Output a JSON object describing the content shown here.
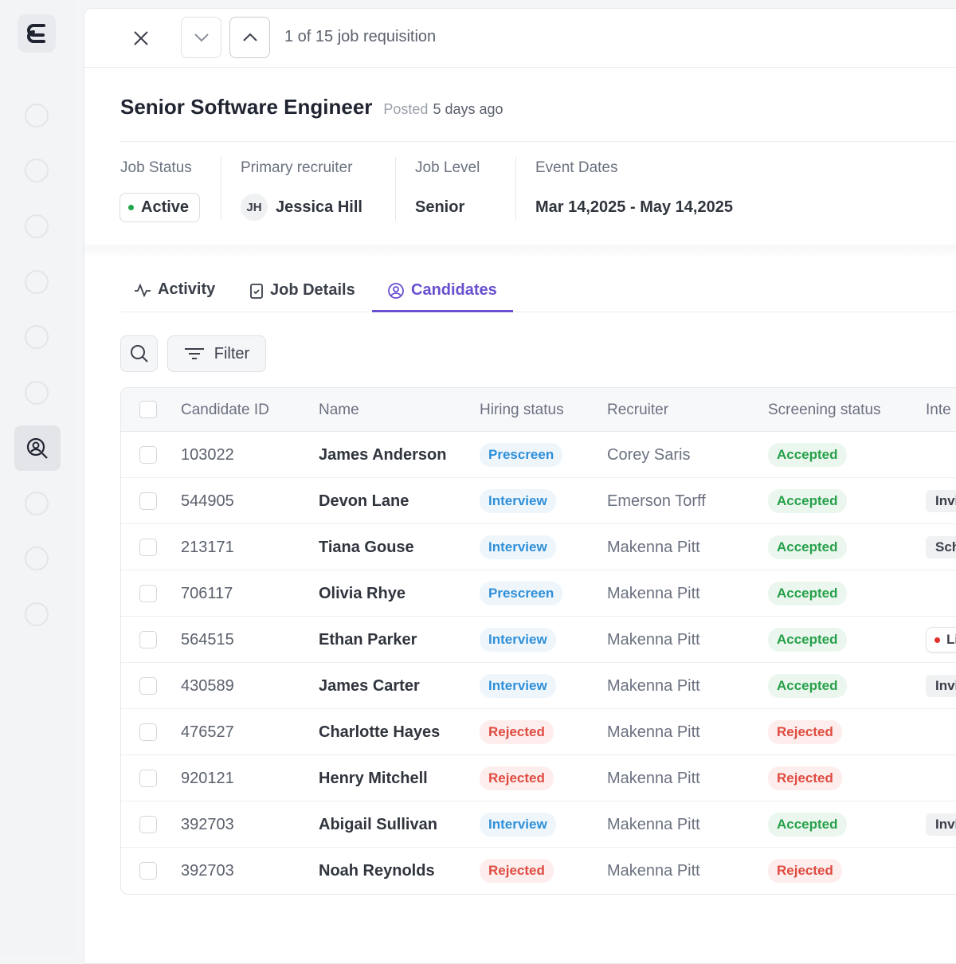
{
  "nav": {
    "counter": "1 of 15 job requisition"
  },
  "header": {
    "title": "Senior Software Engineer",
    "posted_label": "Posted",
    "posted_value": "5 days ago"
  },
  "info": [
    {
      "label": "Job Status",
      "value": "Active"
    },
    {
      "label": "Primary recruiter",
      "initials": "JH",
      "value": "Jessica Hill"
    },
    {
      "label": "Job Level",
      "value": "Senior"
    },
    {
      "label": "Event Dates",
      "value": "Mar 14,2025 - May 14,2025"
    }
  ],
  "tabs": [
    "Activity",
    "Job Details",
    "Candidates"
  ],
  "filter": "Filter",
  "table": {
    "columns": [
      "Candidate ID",
      "Name",
      "Hiring status",
      "Recruiter",
      "Screening status",
      "Inte"
    ],
    "rows": [
      {
        "id": "103022",
        "name": "James Anderson",
        "hiring": "Prescreen",
        "recruiter": "Corey Saris",
        "screening": "Accepted"
      },
      {
        "id": "544905",
        "name": "Devon Lane",
        "hiring": "Interview",
        "recruiter": "Emerson Torff",
        "screening": "Accepted",
        "interview": "Invi"
      },
      {
        "id": "213171",
        "name": "Tiana Gouse",
        "hiring": "Interview",
        "recruiter": "Makenna Pitt",
        "screening": "Accepted",
        "interview": "Sch"
      },
      {
        "id": "706117",
        "name": "Olivia Rhye",
        "hiring": "Prescreen",
        "recruiter": "Makenna Pitt",
        "screening": "Accepted"
      },
      {
        "id": "564515",
        "name": "Ethan Parker",
        "hiring": "Interview",
        "recruiter": "Makenna Pitt",
        "screening": "Accepted",
        "interview": "Li"
      },
      {
        "id": "430589",
        "name": "James Carter",
        "hiring": "Interview",
        "recruiter": "Makenna Pitt",
        "screening": "Accepted",
        "interview": "Invi"
      },
      {
        "id": "476527",
        "name": "Charlotte Hayes",
        "hiring": "Rejected",
        "recruiter": "Makenna Pitt",
        "screening": "Rejected"
      },
      {
        "id": "920121",
        "name": "Henry Mitchell",
        "hiring": "Rejected",
        "recruiter": "Makenna Pitt",
        "screening": "Rejected"
      },
      {
        "id": "392703",
        "name": "Abigail Sullivan",
        "hiring": "Interview",
        "recruiter": "Makenna Pitt",
        "screening": "Accepted",
        "interview": "Invi"
      },
      {
        "id": "392703",
        "name": "Noah Reynolds",
        "hiring": "Rejected",
        "recruiter": "Makenna Pitt",
        "screening": "Rejected"
      }
    ]
  }
}
